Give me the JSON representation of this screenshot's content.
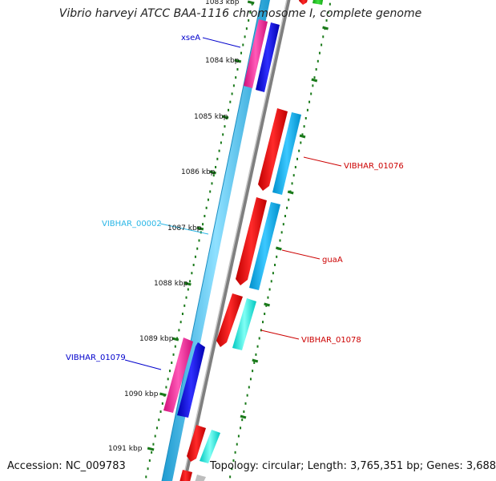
{
  "title": "Vibrio harveyi ATCC BAA-1116 chromosome I, complete genome",
  "footer": {
    "accession": "Accession: NC_009783",
    "summary": "Topology: circular; Length: 3,765,351 bp; Genes: 3,688"
  },
  "ticks": [
    {
      "label": "1083 kbp",
      "kbp": 1083
    },
    {
      "label": "1084 kbp",
      "kbp": 1084
    },
    {
      "label": "1085 kbp",
      "kbp": 1085
    },
    {
      "label": "1086 kbp",
      "kbp": 1086
    },
    {
      "label": "1087 kbp",
      "kbp": 1087
    },
    {
      "label": "1088 kbp",
      "kbp": 1088
    },
    {
      "label": "1089 kbp",
      "kbp": 1089
    },
    {
      "label": "1090 kbp",
      "kbp": 1090
    },
    {
      "label": "1091 kbp",
      "kbp": 1091
    }
  ],
  "gene_labels": [
    {
      "name": "xseA",
      "color": "#0000cc"
    },
    {
      "name": "VIBHAR_01076",
      "color": "#cc0000"
    },
    {
      "name": "VIBHAR_00002",
      "color": "#29b6e6"
    },
    {
      "name": "guaA",
      "color": "#cc0000"
    },
    {
      "name": "VIBHAR_01078",
      "color": "#cc0000"
    },
    {
      "name": "VIBHAR_01079",
      "color": "#0000cc"
    }
  ],
  "colors": {
    "cds_forward": "#ff1a1a",
    "gene_forward": "#00b0ee",
    "cds_reverse": "#ff1a9c",
    "gene_reverse": "#1a1aee",
    "cyan_gene": "#00f0e0",
    "backbone": "#8a8a8a",
    "contig": "#29b6e6",
    "tick": "#1a7a1a"
  }
}
